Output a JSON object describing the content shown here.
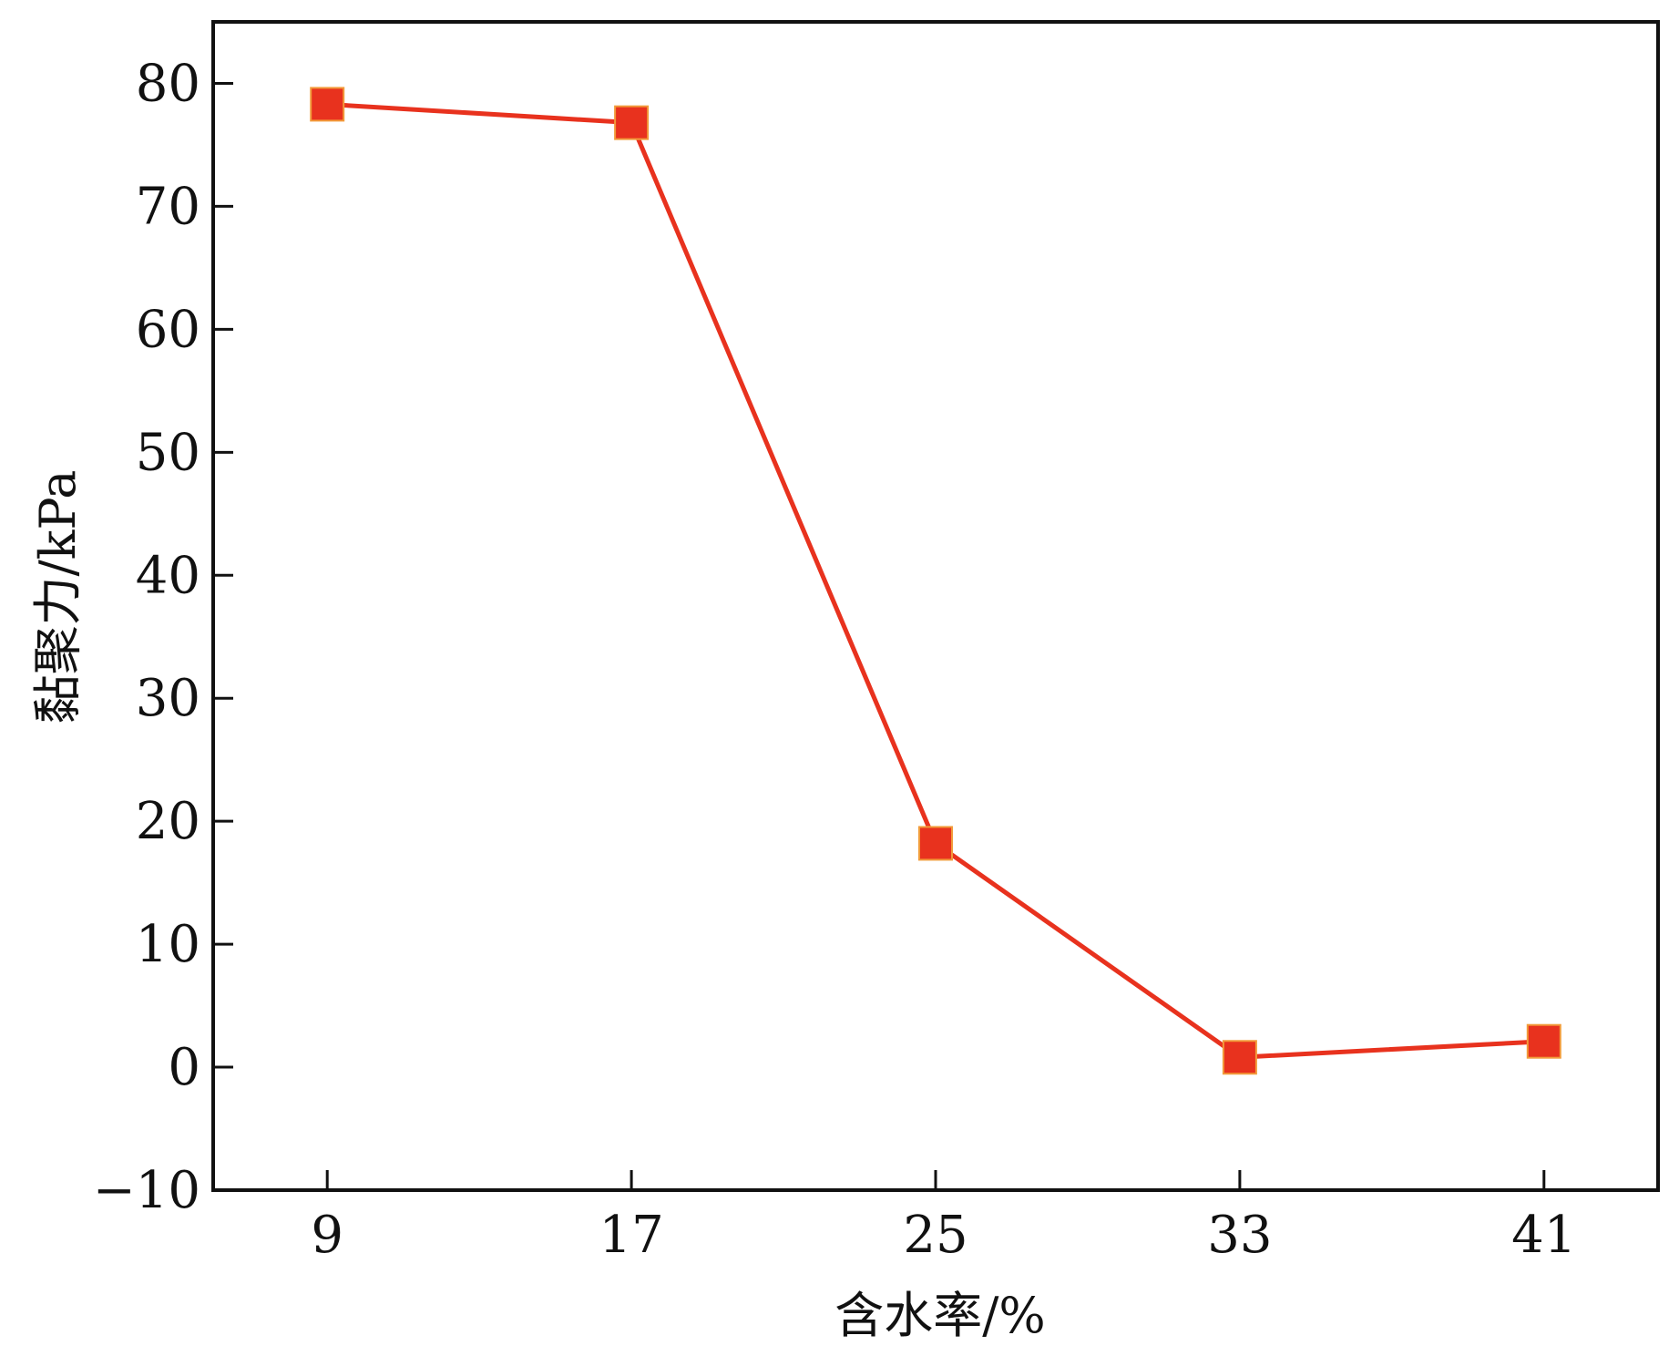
{
  "chart_data": {
    "type": "line",
    "title": "",
    "xlabel": "含水率/%",
    "ylabel": "黏聚力/kPa",
    "categories": [
      "9",
      "17",
      "25",
      "33",
      "41"
    ],
    "x": [
      9,
      17,
      25,
      33,
      41
    ],
    "xlim": [
      6,
      44
    ],
    "ylim": [
      -10,
      85
    ],
    "yticks": [
      -10,
      0,
      10,
      20,
      30,
      40,
      50,
      60,
      70,
      80
    ],
    "ytick_labels": [
      "−10",
      "0",
      "10",
      "20",
      "30",
      "40",
      "50",
      "60",
      "70",
      "80"
    ],
    "series": [
      {
        "values": [
          78.3,
          76.8,
          18.2,
          0.8,
          2.1
        ],
        "color": "#e8321e",
        "marker": "square"
      }
    ],
    "grid": false,
    "legend": "none"
  }
}
